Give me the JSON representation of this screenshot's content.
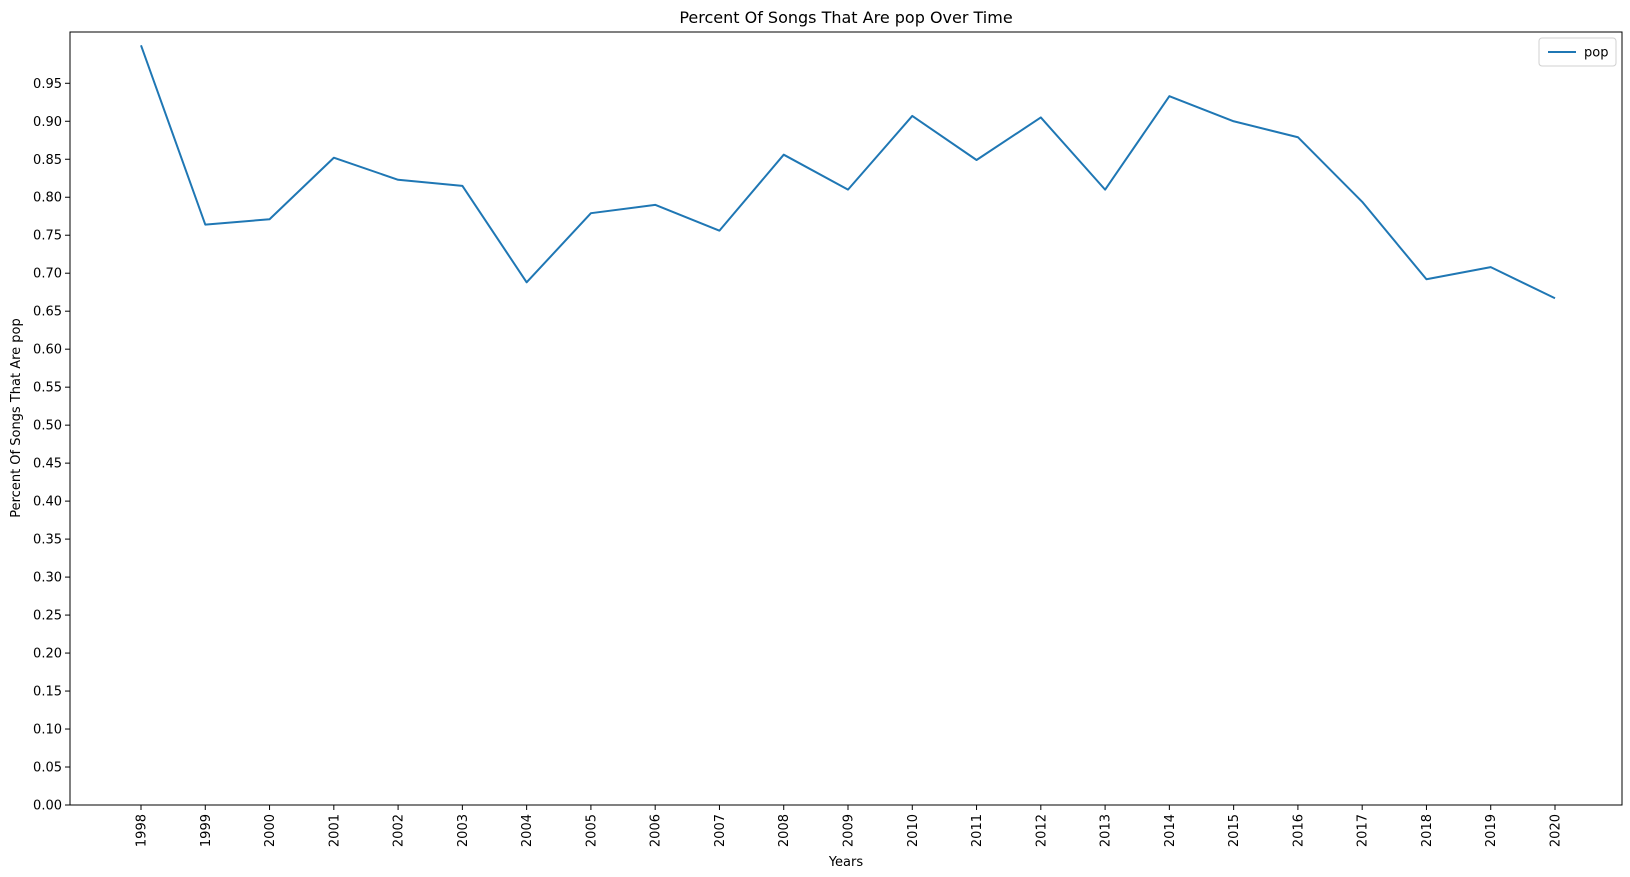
{
  "chart_data": {
    "type": "line",
    "title": "Percent Of Songs That Are pop Over Time",
    "xlabel": "Years",
    "ylabel": "Percent Of Songs That Are pop",
    "categories": [
      "1998",
      "1999",
      "2000",
      "2001",
      "2002",
      "2003",
      "2004",
      "2005",
      "2006",
      "2007",
      "2008",
      "2009",
      "2010",
      "2011",
      "2012",
      "2013",
      "2014",
      "2015",
      "2016",
      "2017",
      "2018",
      "2019",
      "2020"
    ],
    "series": [
      {
        "name": "pop",
        "color": "#1f77b4",
        "values": [
          1.0,
          0.764,
          0.771,
          0.852,
          0.823,
          0.815,
          0.688,
          0.779,
          0.79,
          0.756,
          0.856,
          0.81,
          0.907,
          0.849,
          0.905,
          0.81,
          0.933,
          0.9,
          0.879,
          0.794,
          0.692,
          0.708,
          0.667
        ]
      }
    ],
    "ylim": [
      0,
      1.0
    ],
    "yticks": [
      "0.00",
      "0.05",
      "0.10",
      "0.15",
      "0.20",
      "0.25",
      "0.30",
      "0.35",
      "0.40",
      "0.45",
      "0.50",
      "0.55",
      "0.60",
      "0.65",
      "0.70",
      "0.75",
      "0.80",
      "0.85",
      "0.90",
      "0.95"
    ],
    "grid": false,
    "legend": "top-right"
  }
}
